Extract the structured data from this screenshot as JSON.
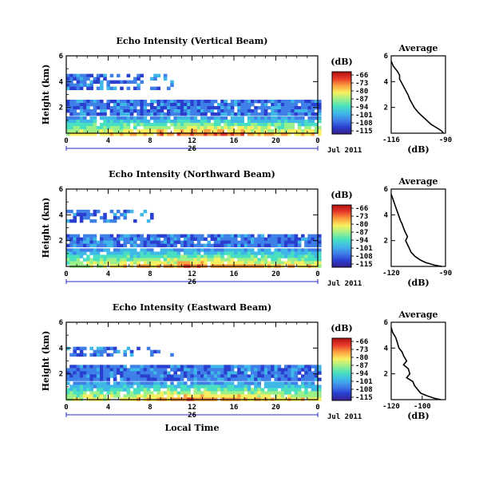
{
  "chart_data": [
    {
      "type": "heatmap",
      "title": "Echo Intensity (Vertical Beam)",
      "ylabel": "Height (km)",
      "xlim": [
        0,
        24
      ],
      "ylim": [
        0,
        6
      ],
      "xticks": [
        "0",
        "4",
        "8",
        "12",
        "16",
        "20",
        "0"
      ],
      "yticks": [
        "2",
        "4",
        "6"
      ],
      "date_day": "26",
      "date_month_year": "Jul 2011",
      "colorbar": {
        "unit": "(dB)",
        "ticks": [
          "-66",
          "-73",
          "-80",
          "-87",
          "-94",
          "-101",
          "-108",
          "-115"
        ]
      },
      "layers": [
        {
          "name": "upper",
          "x_start": 0,
          "x_end": 10,
          "top_km": 4.6,
          "bottom_km": 3.4
        },
        {
          "name": "middle",
          "x_start": 0,
          "x_end": 24,
          "top_km": 2.6,
          "bottom_km": 1.6
        },
        {
          "name": "lower",
          "x_start": 0,
          "x_end": 24,
          "top_km": 1.3,
          "bottom_km": 0
        }
      ],
      "profile": {
        "title": "Average",
        "xlabel": "(dB)",
        "xticks": [
          "-116",
          "-90"
        ],
        "xlim": [
          -116,
          -90
        ],
        "yticks": [
          "2",
          "4",
          "6"
        ],
        "ylim": [
          0,
          6
        ],
        "x": [
          -116,
          -115,
          -113,
          -112,
          -112,
          -111,
          -110,
          -109,
          -108,
          -107,
          -106,
          -105,
          -103,
          -101,
          -99,
          -97,
          -94,
          -92,
          -91
        ],
        "y": [
          5.6,
          5.2,
          4.8,
          4.5,
          4.2,
          3.9,
          3.6,
          3.3,
          3.0,
          2.6,
          2.3,
          2.0,
          1.6,
          1.3,
          1.0,
          0.7,
          0.4,
          0.2,
          0.0
        ]
      }
    },
    {
      "type": "heatmap",
      "title": "Echo Intensity (Northward Beam)",
      "ylabel": "Height (km)",
      "xlim": [
        0,
        24
      ],
      "ylim": [
        0,
        6
      ],
      "xticks": [
        "0",
        "4",
        "8",
        "12",
        "16",
        "20",
        "0"
      ],
      "yticks": [
        "2",
        "4",
        "6"
      ],
      "date_day": "26",
      "date_month_year": "Jul 2011",
      "colorbar": {
        "unit": "(dB)",
        "ticks": [
          "-66",
          "-73",
          "-80",
          "-87",
          "-94",
          "-101",
          "-108",
          "-115"
        ]
      },
      "layers": [
        {
          "name": "upper",
          "x_start": 0,
          "x_end": 8,
          "top_km": 4.4,
          "bottom_km": 3.5
        },
        {
          "name": "middle",
          "x_start": 0,
          "x_end": 24,
          "top_km": 2.5,
          "bottom_km": 1.6
        },
        {
          "name": "lower",
          "x_start": 0,
          "x_end": 24,
          "top_km": 1.4,
          "bottom_km": 0
        }
      ],
      "profile": {
        "title": "Average",
        "xlabel": "(dB)",
        "xticks": [
          "-120",
          "-90"
        ],
        "xlim": [
          -120,
          -90
        ],
        "yticks": [
          "2",
          "4",
          "6"
        ],
        "ylim": [
          0,
          6
        ],
        "x": [
          -120,
          -119,
          -118,
          -117,
          -116,
          -115,
          -114,
          -113,
          -112,
          -111,
          -112,
          -111,
          -110,
          -109,
          -107,
          -104,
          -101,
          -96,
          -92
        ],
        "y": [
          5.6,
          5.2,
          4.8,
          4.4,
          4.0,
          3.6,
          3.3,
          2.9,
          2.6,
          2.3,
          2.0,
          1.7,
          1.4,
          1.1,
          0.8,
          0.5,
          0.3,
          0.1,
          0.0
        ]
      }
    },
    {
      "type": "heatmap",
      "title": "Echo Intensity (Eastward Beam)",
      "ylabel": "Height (km)",
      "xlim": [
        0,
        24
      ],
      "ylim": [
        0,
        6
      ],
      "xticks": [
        "0",
        "4",
        "8",
        "12",
        "16",
        "20",
        "0"
      ],
      "yticks": [
        "2",
        "4",
        "6"
      ],
      "date_day": "26",
      "date_month_year": "Jul 2011",
      "xlabel": "Local Time",
      "colorbar": {
        "unit": "(dB)",
        "ticks": [
          "-66",
          "-73",
          "-80",
          "-87",
          "-94",
          "-101",
          "-108",
          "-115"
        ]
      },
      "layers": [
        {
          "name": "upper",
          "x_start": 0,
          "x_end": 10,
          "top_km": 4.1,
          "bottom_km": 3.4
        },
        {
          "name": "middle",
          "x_start": 0,
          "x_end": 24,
          "top_km": 2.7,
          "bottom_km": 1.7
        },
        {
          "name": "lower",
          "x_start": 0,
          "x_end": 24,
          "top_km": 1.4,
          "bottom_km": 0
        }
      ],
      "profile": {
        "title": "Average",
        "xlabel": "(dB)",
        "xticks": [
          "-120",
          "-100"
        ],
        "xlim": [
          -120,
          -85
        ],
        "yticks": [
          "2",
          "4",
          "6"
        ],
        "ylim": [
          0,
          6
        ],
        "x": [
          -120,
          -119,
          -117,
          -116,
          -115,
          -113,
          -112,
          -110,
          -112,
          -109,
          -108,
          -110,
          -106,
          -105,
          -103,
          -101,
          -97,
          -92,
          -88
        ],
        "y": [
          5.6,
          5.2,
          4.8,
          4.4,
          4.0,
          3.7,
          3.4,
          3.0,
          2.7,
          2.4,
          2.0,
          1.7,
          1.4,
          1.1,
          0.8,
          0.5,
          0.3,
          0.1,
          0.0
        ]
      }
    }
  ],
  "colors": {
    "scale": [
      "#3b1f8f",
      "#2a3fd0",
      "#3f7fe8",
      "#3fb8e8",
      "#48e0c0",
      "#9cf08a",
      "#f8f060",
      "#fca040",
      "#e83a2a",
      "#b01010"
    ]
  }
}
